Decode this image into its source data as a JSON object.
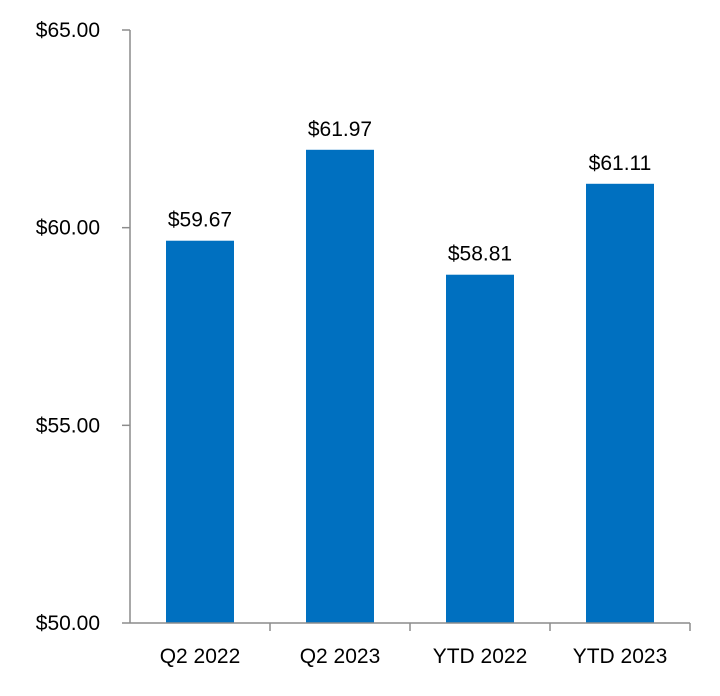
{
  "chart_data": {
    "type": "bar",
    "categories": [
      "Q2 2022",
      "Q2 2023",
      "YTD 2022",
      "YTD 2023"
    ],
    "values": [
      59.67,
      61.97,
      58.81,
      61.11
    ],
    "data_labels": [
      "$59.67",
      "$61.97",
      "$58.81",
      "$61.11"
    ],
    "ylim": [
      50,
      65
    ],
    "yticks": [
      50,
      55,
      60,
      65
    ],
    "ytick_labels": [
      "$50.00",
      "$55.00",
      "$60.00",
      "$65.00"
    ],
    "grid": false,
    "bar_color": "#0070c0"
  }
}
